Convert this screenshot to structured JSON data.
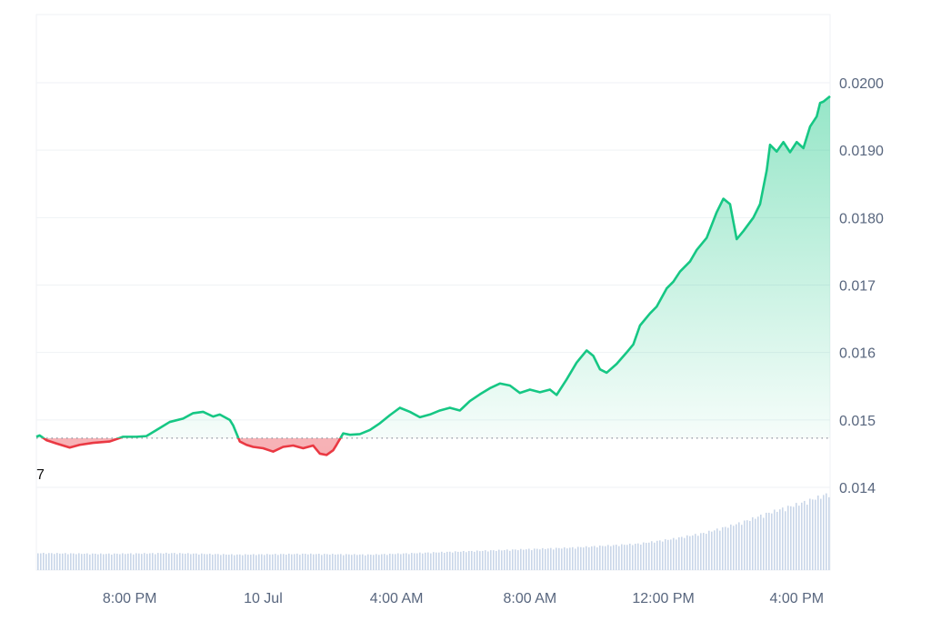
{
  "chart_data": {
    "type": "line",
    "baseline": 0.01473,
    "baseline_label": "7",
    "y_ticks": [
      {
        "value": 0.014,
        "label": "0.014"
      },
      {
        "value": 0.015,
        "label": "0.015"
      },
      {
        "value": 0.016,
        "label": "0.016"
      },
      {
        "value": 0.017,
        "label": "0.017"
      },
      {
        "value": 0.018,
        "label": "0.0180"
      },
      {
        "value": 0.019,
        "label": "0.0190"
      },
      {
        "value": 0.02,
        "label": "0.0200"
      }
    ],
    "ylim": [
      0.014,
      0.02
    ],
    "xlim": [
      0,
      23.8
    ],
    "x_ticks": [
      {
        "value": 2.8,
        "label": "8:00 PM"
      },
      {
        "value": 6.8,
        "label": "10 Jul"
      },
      {
        "value": 10.8,
        "label": "4:00 AM"
      },
      {
        "value": 14.8,
        "label": "8:00 AM"
      },
      {
        "value": 18.8,
        "label": "12:00 PM"
      },
      {
        "value": 22.8,
        "label": "4:00 PM"
      }
    ],
    "price": {
      "x": [
        0,
        0.1,
        0.3,
        0.6,
        1.0,
        1.3,
        1.7,
        2.2,
        2.6,
        3.0,
        3.3,
        3.6,
        4.0,
        4.4,
        4.7,
        5.0,
        5.3,
        5.5,
        5.8,
        5.9,
        6.1,
        6.3,
        6.5,
        6.8,
        7.1,
        7.4,
        7.7,
        8.0,
        8.3,
        8.5,
        8.7,
        8.9,
        9.0,
        9.2,
        9.4,
        9.7,
        10.0,
        10.3,
        10.6,
        10.9,
        11.2,
        11.5,
        11.8,
        12.1,
        12.4,
        12.7,
        13.0,
        13.3,
        13.6,
        13.9,
        14.2,
        14.5,
        14.8,
        15.1,
        15.4,
        15.6,
        15.9,
        16.2,
        16.5,
        16.7,
        16.9,
        17.1,
        17.4,
        17.7,
        17.9,
        18.1,
        18.4,
        18.6,
        18.9,
        19.1,
        19.3,
        19.6,
        19.8,
        20.1,
        20.4,
        20.6,
        20.8,
        21.0,
        21.2,
        21.5,
        21.7,
        21.9,
        22.0,
        22.2,
        22.4,
        22.6,
        22.8,
        23.0,
        23.2,
        23.4,
        23.5,
        23.6,
        23.8
      ],
      "y": [
        0.01475,
        0.01477,
        0.0147,
        0.01465,
        0.01459,
        0.01463,
        0.01466,
        0.01468,
        0.01475,
        0.01475,
        0.01476,
        0.01485,
        0.01497,
        0.01502,
        0.0151,
        0.01512,
        0.01505,
        0.01508,
        0.015,
        0.01492,
        0.01468,
        0.01463,
        0.0146,
        0.01458,
        0.01453,
        0.0146,
        0.01462,
        0.01458,
        0.01462,
        0.0145,
        0.01448,
        0.01455,
        0.01463,
        0.0148,
        0.01478,
        0.01479,
        0.01485,
        0.01495,
        0.01507,
        0.01518,
        0.01512,
        0.01504,
        0.01508,
        0.01514,
        0.01518,
        0.01514,
        0.01528,
        0.01538,
        0.01547,
        0.01554,
        0.01551,
        0.0154,
        0.01545,
        0.01541,
        0.01545,
        0.01537,
        0.0156,
        0.01585,
        0.01603,
        0.01595,
        0.01575,
        0.0157,
        0.01583,
        0.016,
        0.01612,
        0.0164,
        0.01658,
        0.01668,
        0.01695,
        0.01705,
        0.0172,
        0.01735,
        0.01752,
        0.0177,
        0.01808,
        0.01828,
        0.0182,
        0.01768,
        0.0178,
        0.018,
        0.0182,
        0.0187,
        0.01908,
        0.01898,
        0.01912,
        0.01897,
        0.01912,
        0.01903,
        0.01935,
        0.0195,
        0.0197,
        0.01972,
        0.0198
      ]
    },
    "volume": {
      "x": [
        0,
        2,
        4,
        6,
        8,
        10,
        12,
        14,
        16,
        18,
        19,
        20,
        21,
        22,
        23,
        23.8
      ],
      "v": [
        0.22,
        0.21,
        0.22,
        0.2,
        0.21,
        0.2,
        0.23,
        0.26,
        0.29,
        0.34,
        0.4,
        0.48,
        0.6,
        0.75,
        0.88,
        1.0
      ]
    },
    "grid": "horizontal",
    "colors": {
      "up": "#16c784",
      "down": "#ea3943",
      "up_fill": "#16c784",
      "down_fill": "#ea3943",
      "grid": "#eff2f5",
      "baseline": "#8a919e",
      "volume": "#c9d6e8",
      "axis_text": "#58667e"
    }
  }
}
